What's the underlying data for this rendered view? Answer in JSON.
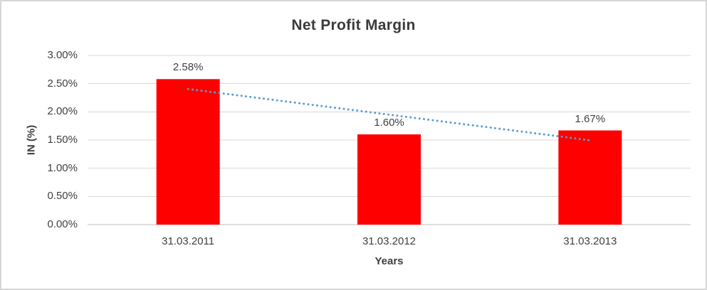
{
  "chart_data": {
    "type": "bar",
    "title": "Net Profit Margin",
    "xlabel": "Years",
    "ylabel": "IN (%)",
    "categories": [
      "31.03.2011",
      "31.03.2012",
      "31.03.2013"
    ],
    "values": [
      2.58,
      1.6,
      1.67
    ],
    "data_labels": [
      "2.58%",
      "1.60%",
      "1.67%"
    ],
    "ylim": [
      0,
      3
    ],
    "y_tick_values": [
      0,
      0.5,
      1,
      1.5,
      2,
      2.5,
      3
    ],
    "y_tick_labels": [
      "0.00%",
      "0.50%",
      "1.00%",
      "1.50%",
      "2.00%",
      "2.50%",
      "3.00%"
    ],
    "grid": "horizontal",
    "legend": "none",
    "bar_color": "#FF0000",
    "trendline": {
      "type": "linear",
      "style": "dotted",
      "color": "#5B9BD5"
    },
    "colors": {
      "gridline": "#D9D9D9",
      "axis_line": "#BFBFBF",
      "text": "#404040",
      "border": "#D6D6D6",
      "background": "#FFFFFF"
    }
  }
}
